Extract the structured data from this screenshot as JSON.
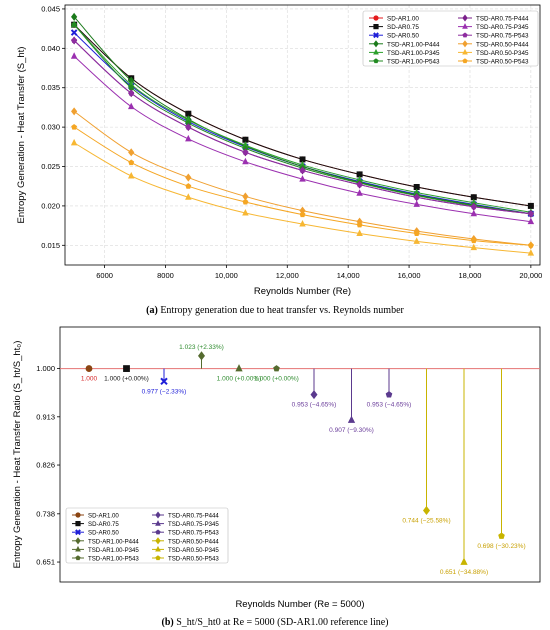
{
  "captions": {
    "a_tag": "(a)",
    "a_text": "Entropy generation due to heat transfer vs. Reynolds number",
    "b_tag": "(b)",
    "b_text": "S_ht/S_ht0 at Re = 5000 (SD-AR1.00 reference line)"
  },
  "chart_data": [
    {
      "type": "line",
      "xlabel": "Reynolds Number (Re)",
      "ylabel": "Entropy Generation - Heat Transfer (S_ht)",
      "xlim": [
        4700,
        20300
      ],
      "ylim": [
        0.0125,
        0.0455
      ],
      "xticks": [
        6000,
        8000,
        10000,
        12000,
        14000,
        16000,
        18000,
        20000
      ],
      "xtick_labels": [
        "6000",
        "8000",
        "10,000",
        "12,000",
        "14,000",
        "16,000",
        "18,000",
        "20,000"
      ],
      "yticks": [
        0.015,
        0.02,
        0.025,
        0.03,
        0.035,
        0.04,
        0.045
      ],
      "ytick_labels": [
        "0.015",
        "0.020",
        "0.025",
        "0.030",
        "0.035",
        "0.040",
        "0.045"
      ],
      "grid": true,
      "legend_position": "top-right",
      "x": [
        5000,
        6875,
        8750,
        10625,
        12500,
        14375,
        16250,
        18125,
        20000
      ],
      "series": [
        {
          "name": "SD-AR1.00",
          "color": "#e41a1c",
          "marker": "circle",
          "values": [
            0.043,
            0.0362,
            0.0317,
            0.0284,
            0.0259,
            0.024,
            0.0224,
            0.0211,
            0.02
          ]
        },
        {
          "name": "SD-AR0.75",
          "color": "#111111",
          "marker": "square",
          "values": [
            0.043,
            0.0362,
            0.0317,
            0.0284,
            0.0259,
            0.024,
            0.0224,
            0.0211,
            0.02
          ]
        },
        {
          "name": "SD-AR0.50",
          "color": "#1f1fd8",
          "marker": "x",
          "values": [
            0.042,
            0.0352,
            0.0307,
            0.0275,
            0.025,
            0.0231,
            0.0215,
            0.0202,
            0.019
          ]
        },
        {
          "name": "TSD-AR1.00-P444",
          "color": "#1b7a1b",
          "marker": "diamond",
          "values": [
            0.044,
            0.0359,
            0.031,
            0.0276,
            0.025,
            0.023,
            0.0214,
            0.0201,
            0.019
          ]
        },
        {
          "name": "TSD-AR1.00-P345",
          "color": "#2ca02c",
          "marker": "triangle",
          "values": [
            0.043,
            0.0354,
            0.0309,
            0.0277,
            0.0252,
            0.0233,
            0.0217,
            0.0204,
            0.0192
          ]
        },
        {
          "name": "TSD-AR1.00-P543",
          "color": "#238b23",
          "marker": "pentagon",
          "values": [
            0.043,
            0.035,
            0.0305,
            0.0273,
            0.0248,
            0.0229,
            0.0213,
            0.02,
            0.019
          ]
        },
        {
          "name": "TSD-AR0.75-P444",
          "color": "#7a1f8a",
          "marker": "diamond",
          "values": [
            0.041,
            0.0343,
            0.03,
            0.0268,
            0.0245,
            0.0227,
            0.0211,
            0.0199,
            0.019
          ]
        },
        {
          "name": "TSD-AR0.75-P345",
          "color": "#9b30b0",
          "marker": "triangle",
          "values": [
            0.039,
            0.0326,
            0.0285,
            0.0256,
            0.0234,
            0.0216,
            0.0202,
            0.019,
            0.018
          ]
        },
        {
          "name": "TSD-AR0.75-P543",
          "color": "#8e2da0",
          "marker": "pentagon",
          "values": [
            0.041,
            0.0343,
            0.03,
            0.0268,
            0.0245,
            0.0227,
            0.0211,
            0.0199,
            0.019
          ]
        },
        {
          "name": "TSD-AR0.50-P444",
          "color": "#f0a030",
          "marker": "diamond",
          "values": [
            0.032,
            0.0268,
            0.0236,
            0.0212,
            0.0194,
            0.018,
            0.0168,
            0.0158,
            0.015
          ]
        },
        {
          "name": "TSD-AR0.50-P345",
          "color": "#f7b733",
          "marker": "triangle",
          "values": [
            0.028,
            0.0238,
            0.0211,
            0.0191,
            0.0177,
            0.0165,
            0.0155,
            0.0147,
            0.014
          ]
        },
        {
          "name": "TSD-AR0.50-P543",
          "color": "#f5a623",
          "marker": "pentagon",
          "values": [
            0.03,
            0.0255,
            0.0225,
            0.0205,
            0.0189,
            0.0176,
            0.0165,
            0.0156,
            0.015
          ]
        }
      ]
    },
    {
      "type": "scatter",
      "xlabel": "Reynolds Number (Re = 5000)",
      "ylabel": "Entropy Generation - Heat Transfer Ratio (S_ht/S_ht₀)",
      "ylim": [
        0.615,
        1.075
      ],
      "yticks": [
        0.651,
        0.738,
        0.826,
        0.913,
        1.0
      ],
      "ytick_labels": [
        "0.651",
        "0.738",
        "0.826",
        "0.913",
        "1.000"
      ],
      "reference_line": 1.0,
      "legend_position": "bottom-left",
      "points": [
        {
          "name": "SD-AR1.00",
          "color": "#8b4513",
          "label_color": "#d62728",
          "marker": "circle",
          "value": 1.0,
          "label": "1.000"
        },
        {
          "name": "SD-AR0.75",
          "color": "#111111",
          "label_color": "#111111",
          "marker": "square",
          "value": 1.0,
          "label": "1.000 (+0.00%)"
        },
        {
          "name": "SD-AR0.50",
          "color": "#1f1fd8",
          "label_color": "#1f1fd8",
          "marker": "x",
          "value": 0.977,
          "label": "0.977 (−2.33%)"
        },
        {
          "name": "TSD-AR1.00-P444",
          "color": "#556b2f",
          "label_color": "#2e8b2e",
          "marker": "diamond",
          "value": 1.023,
          "label": "1.023 (+2.33%)"
        },
        {
          "name": "TSD-AR1.00-P345",
          "color": "#556b2f",
          "label_color": "#2e8b2e",
          "marker": "triangle",
          "value": 1.0,
          "label": "1.000 (+0.00%)"
        },
        {
          "name": "TSD-AR1.00-P543",
          "color": "#556b2f",
          "label_color": "#2e8b2e",
          "marker": "pentagon",
          "value": 1.0,
          "label": "1.000 (+0.00%)"
        },
        {
          "name": "TSD-AR0.75-P444",
          "color": "#5b3a8e",
          "label_color": "#6a3d9a",
          "marker": "diamond",
          "value": 0.953,
          "label": "0.953 (−4.65%)"
        },
        {
          "name": "TSD-AR0.75-P345",
          "color": "#5b3a8e",
          "label_color": "#6a3d9a",
          "marker": "triangle",
          "value": 0.907,
          "label": "0.907 (−9.30%)"
        },
        {
          "name": "TSD-AR0.75-P543",
          "color": "#5b3a8e",
          "label_color": "#6a3d9a",
          "marker": "pentagon",
          "value": 0.953,
          "label": "0.953 (−4.65%)"
        },
        {
          "name": "TSD-AR0.50-P444",
          "color": "#c8b400",
          "label_color": "#c8a000",
          "marker": "diamond",
          "value": 0.744,
          "label": "0.744 (−25.58%)"
        },
        {
          "name": "TSD-AR0.50-P345",
          "color": "#c8b400",
          "label_color": "#c8a000",
          "marker": "triangle",
          "value": 0.651,
          "label": "0.651 (−34.88%)"
        },
        {
          "name": "TSD-AR0.50-P543",
          "color": "#c8b400",
          "label_color": "#c8a000",
          "marker": "pentagon",
          "value": 0.698,
          "label": "0.698 (−30.23%)"
        }
      ]
    }
  ]
}
